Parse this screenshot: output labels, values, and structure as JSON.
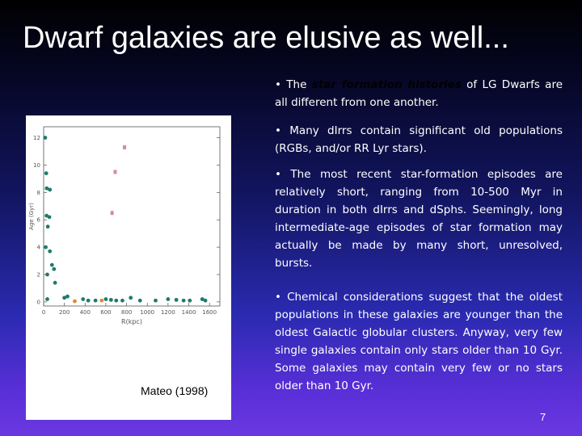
{
  "slide": {
    "title": "Dwarf galaxies are elusive as well...",
    "bullet1": {
      "prefix": "• The ",
      "highlight": "star formation histories",
      "suffix": " of LG Dwarfs are all different from one another."
    },
    "bullet2": "• Many dIrrs contain significant old populations (RGBs, and/or RR Lyr stars).",
    "bullet3": "• The most recent star-formation episodes are relatively short, ranging from 10-500 Myr in duration in both dIrrs and dSphs. Seemingly, long intermediate-age episodes of star formation may actually be made by many short, unresolved, bursts.",
    "bullet4": "• Chemical considerations suggest that the oldest populations in these galaxies are younger than the oldest Galactic globular clusters. Anyway, very few single galaxies contain only stars older than 10 Gyr. Some galaxies may contain very few or no stars older than 10 Gyr.",
    "caption": "Mateo (1998)",
    "slide_number": "7",
    "colors": {
      "highlight": "#000000",
      "dots": "#1f7a6c",
      "pink": "#d48aa6",
      "orange": "#d98c3a"
    }
  },
  "chart_data": {
    "type": "scatter",
    "xlabel": "R(kpc)",
    "ylabel": "Age (Gyr)",
    "xlim": [
      0,
      1700
    ],
    "ylim": [
      -0.3,
      12.8
    ],
    "xticks": [
      "0",
      "200",
      "400",
      "600",
      "800",
      "1000",
      "1200",
      "1400",
      "1600"
    ],
    "yticks": [
      "0",
      "2",
      "4",
      "6",
      "8",
      "10",
      "12"
    ],
    "series": [
      {
        "color": "teal",
        "points": [
          [
            15,
            12
          ],
          [
            25,
            9.4
          ],
          [
            30,
            8.3
          ],
          [
            60,
            8.2
          ],
          [
            28,
            6.3
          ],
          [
            55,
            6.2
          ],
          [
            40,
            5.5
          ],
          [
            60,
            3.7
          ],
          [
            20,
            4
          ],
          [
            80,
            2.7
          ],
          [
            35,
            2.0
          ],
          [
            100,
            2.4
          ],
          [
            110,
            1.4
          ],
          [
            35,
            0.2
          ],
          [
            200,
            0.3
          ],
          [
            230,
            0.4
          ],
          [
            380,
            0.2
          ],
          [
            430,
            0.1
          ],
          [
            500,
            0.1
          ],
          [
            600,
            0.2
          ],
          [
            650,
            0.15
          ],
          [
            700,
            0.1
          ],
          [
            760,
            0.1
          ],
          [
            840,
            0.3
          ],
          [
            930,
            0.1
          ],
          [
            1080,
            0.1
          ],
          [
            1200,
            0.2
          ],
          [
            1280,
            0.15
          ],
          [
            1350,
            0.1
          ],
          [
            1410,
            0.1
          ],
          [
            1530,
            0.2
          ],
          [
            1560,
            0.1
          ]
        ]
      },
      {
        "color": "pink",
        "points": [
          [
            780,
            11.3
          ],
          [
            690,
            9.5
          ],
          [
            660,
            6.5
          ]
        ]
      },
      {
        "color": "orange",
        "points": [
          [
            300,
            0.05
          ],
          [
            560,
            0.1
          ]
        ]
      }
    ]
  }
}
